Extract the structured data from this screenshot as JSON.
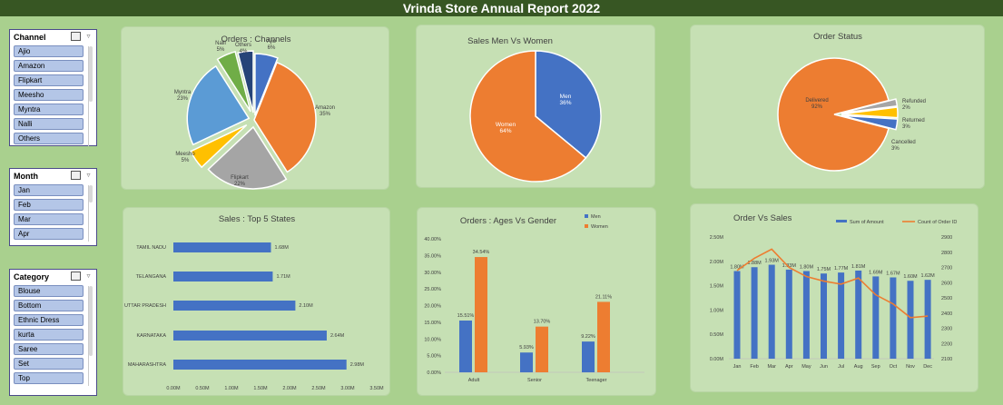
{
  "header": {
    "title": "Vrinda Store Annual Report 2022"
  },
  "slicers": {
    "channel": {
      "title": "Channel",
      "items": [
        "Ajio",
        "Amazon",
        "Flipkart",
        "Meesho",
        "Myntra",
        "Nalli",
        "Others"
      ]
    },
    "month": {
      "title": "Month",
      "items": [
        "Jan",
        "Feb",
        "Mar",
        "Apr"
      ]
    },
    "category": {
      "title": "Category",
      "items": [
        "Blouse",
        "Bottom",
        "Ethnic Dress",
        "kurta",
        "Saree",
        "Set",
        "Top"
      ]
    }
  },
  "colors": {
    "blue": "#4472c4",
    "orange": "#ed7d31",
    "gray": "#a5a5a5",
    "yellow": "#ffc000",
    "lightblue": "#5b9bd5",
    "green": "#70ad47",
    "navy": "#264478",
    "header": "#375623",
    "background": "#a9d08e",
    "card": "#c6e0b4"
  },
  "chart_data": [
    {
      "id": "orders_channels",
      "type": "pie",
      "title": "Orders : Channels",
      "slices": [
        {
          "label": "Ajio",
          "value": 6,
          "text": "6%",
          "color": "#4472c4"
        },
        {
          "label": "Amazon",
          "value": 35,
          "text": "35%",
          "color": "#ed7d31"
        },
        {
          "label": "Flipkart",
          "value": 22,
          "text": "22%",
          "color": "#a5a5a5"
        },
        {
          "label": "Meesho",
          "value": 5,
          "text": "5%",
          "color": "#ffc000"
        },
        {
          "label": "Myntra",
          "value": 23,
          "text": "23%",
          "color": "#5b9bd5"
        },
        {
          "label": "Nalli",
          "value": 5,
          "text": "5%",
          "color": "#70ad47"
        },
        {
          "label": "Others",
          "value": 4,
          "text": "4%",
          "color": "#264478"
        }
      ]
    },
    {
      "id": "sales_gender",
      "type": "pie",
      "title": "Sales Men Vs Women",
      "slices": [
        {
          "label": "Men",
          "value": 36,
          "text": "36%",
          "color": "#4472c4"
        },
        {
          "label": "Women",
          "value": 64,
          "text": "64%",
          "color": "#ed7d31"
        }
      ]
    },
    {
      "id": "order_status",
      "type": "pie",
      "title": "Order Status",
      "slices": [
        {
          "label": "Delivered",
          "value": 92,
          "text": "92%",
          "color": "#ed7d31"
        },
        {
          "label": "Refunded",
          "value": 2,
          "text": "2%",
          "color": "#a5a5a5"
        },
        {
          "label": "Returned",
          "value": 3,
          "text": "3%",
          "color": "#ffc000"
        },
        {
          "label": "Cancelled",
          "value": 3,
          "text": "3%",
          "color": "#4472c4"
        }
      ]
    },
    {
      "id": "top_states",
      "type": "bar",
      "orientation": "horizontal",
      "title": "Sales : Top 5 States",
      "categories": [
        "TAMIL NADU",
        "TELANGANA",
        "UTTAR PRADESH",
        "KARNATAKA",
        "MAHARASHTRA"
      ],
      "values": [
        1.68,
        1.71,
        2.1,
        2.64,
        2.98
      ],
      "value_labels": [
        "1.68M",
        "1.71M",
        "2.10M",
        "2.64M",
        "2.98M"
      ],
      "xlim": [
        0,
        3.5
      ],
      "xticks": [
        "0.00M",
        "0.50M",
        "1.00M",
        "1.50M",
        "2.00M",
        "2.50M",
        "3.00M",
        "3.50M"
      ]
    },
    {
      "id": "ages_gender",
      "type": "bar",
      "title": "Orders : Ages Vs Gender",
      "categories": [
        "Adult",
        "Senior",
        "Teenager"
      ],
      "series": [
        {
          "name": "Men",
          "values": [
            15.51,
            5.93,
            9.22
          ],
          "labels": [
            "15.51%",
            "5.93%",
            "9.22%"
          ],
          "color": "#4472c4"
        },
        {
          "name": "Women",
          "values": [
            34.54,
            13.7,
            21.11
          ],
          "labels": [
            "34.54%",
            "13.70%",
            "21.11%"
          ],
          "color": "#ed7d31"
        }
      ],
      "ylim": [
        0,
        40
      ],
      "yticks": [
        "0.00%",
        "5.00%",
        "10.00%",
        "15.00%",
        "20.00%",
        "25.00%",
        "30.00%",
        "35.00%",
        "40.00%"
      ],
      "legend": "top-right"
    },
    {
      "id": "order_vs_sales",
      "type": "bar",
      "title": "Order Vs Sales",
      "categories": [
        "Jan",
        "Feb",
        "Mar",
        "Apr",
        "May",
        "Jun",
        "Jul",
        "Aug",
        "Sep",
        "Oct",
        "Nov",
        "Dec"
      ],
      "series": [
        {
          "name": "Sum of Amount",
          "kind": "bar",
          "axis": "left",
          "values": [
            1.8,
            1.88,
            1.93,
            1.83,
            1.8,
            1.75,
            1.77,
            1.81,
            1.69,
            1.67,
            1.6,
            1.62
          ],
          "labels": [
            "1.80M",
            "1.88M",
            "1.93M",
            "1.83M",
            "1.80M",
            "1.75M",
            "1.77M",
            "1.81M",
            "1.69M",
            "1.67M",
            "1.60M",
            "1.62M"
          ],
          "color": "#4472c4"
        },
        {
          "name": "Count of Order ID",
          "kind": "line",
          "axis": "right",
          "values": [
            2680,
            2760,
            2820,
            2700,
            2640,
            2610,
            2590,
            2630,
            2520,
            2460,
            2370,
            2380
          ],
          "color": "#ed7d31"
        }
      ],
      "ylim_left": [
        0,
        2.5
      ],
      "yticks_left": [
        "0.00M",
        "0.50M",
        "1.00M",
        "1.50M",
        "2.00M",
        "2.50M"
      ],
      "ylim_right": [
        2100,
        2900
      ],
      "yticks_right": [
        "2100",
        "2200",
        "2300",
        "2400",
        "2500",
        "2600",
        "2700",
        "2800",
        "2900"
      ],
      "legend": "top"
    }
  ]
}
